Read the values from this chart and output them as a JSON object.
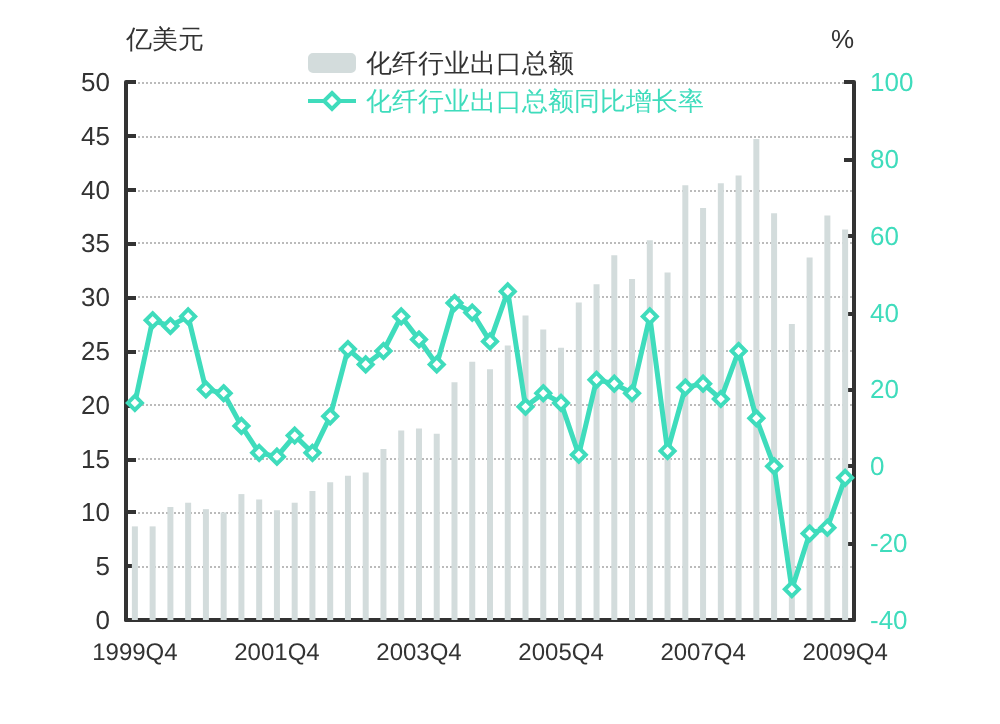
{
  "chart_data": {
    "type": "bar",
    "categories": [
      "1999Q4",
      null,
      null,
      null,
      null,
      null,
      null,
      null,
      "2001Q4",
      null,
      null,
      null,
      null,
      null,
      null,
      null,
      "2003Q4",
      null,
      null,
      null,
      null,
      null,
      null,
      null,
      "2005Q4",
      null,
      null,
      null,
      null,
      null,
      null,
      null,
      "2007Q4",
      null,
      null,
      null,
      null,
      null,
      null,
      null,
      "2009Q4"
    ],
    "series": [
      {
        "name": "化纤行业出口总额",
        "color": "#d3dcdc",
        "values": [
          8.7,
          8.7,
          10.5,
          10.9,
          10.3,
          10.0,
          11.7,
          11.2,
          10.2,
          10.9,
          12.0,
          12.8,
          13.4,
          13.7,
          15.9,
          17.6,
          17.8,
          17.3,
          22.1,
          24.0,
          23.3,
          25.5,
          28.3,
          27.0,
          25.3,
          29.5,
          31.2,
          33.9,
          31.7,
          35.3,
          32.3,
          40.4,
          38.3,
          40.6,
          41.3,
          44.7,
          37.8,
          27.5,
          33.7,
          37.6,
          36.3
        ]
      },
      {
        "name": "化纤行业出口总额同比增长率",
        "type": "line",
        "axis": "y2",
        "color": "#3fdcbc",
        "marker": "diamond",
        "line_style": "solid",
        "values": [
          16.5,
          38,
          36.5,
          39,
          20,
          19,
          10.5,
          3.5,
          2.5,
          8,
          3.5,
          13,
          30.5,
          26.5,
          30,
          39,
          33,
          26.5,
          42.5,
          40,
          32.5,
          45.5,
          15.5,
          19,
          16.5,
          3,
          22.5,
          21.5,
          19,
          39,
          4,
          20.5,
          21.5,
          17.5,
          30,
          12.5,
          0,
          -32,
          -17.5,
          -16,
          -3
        ]
      }
    ],
    "ylabel": "亿美元",
    "y2label": "%",
    "ylim": [
      0,
      50
    ],
    "yticks": [
      0,
      5,
      10,
      15,
      20,
      25,
      30,
      35,
      40,
      45,
      50
    ],
    "y2lim": [
      -40,
      100
    ],
    "y2ticks": [
      -40,
      -20,
      0,
      20,
      40,
      60,
      80,
      100
    ],
    "grid": "y",
    "legend": "top"
  }
}
